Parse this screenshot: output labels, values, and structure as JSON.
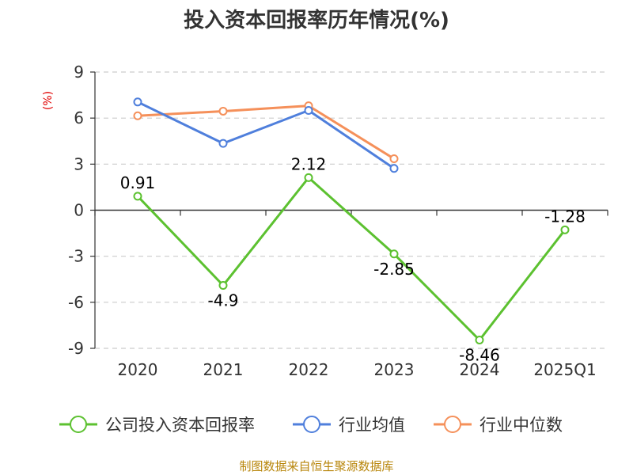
{
  "chart_data": {
    "type": "line",
    "title": "投入资本回报率历年情况(%)",
    "ylabel": "(%)",
    "categories": [
      "2020",
      "2021",
      "2022",
      "2023",
      "2024",
      "2025Q1"
    ],
    "ylim": [
      -9,
      9
    ],
    "yticks": [
      "9",
      "6",
      "3",
      "0",
      "-3",
      "-6",
      "-9"
    ],
    "grid": true,
    "legend_position": "bottom",
    "series": [
      {
        "name": "公司投入资本回报率",
        "color": "#5cc130",
        "values": [
          0.91,
          -4.9,
          2.12,
          -2.85,
          -8.46,
          -1.28
        ],
        "labels": [
          "0.91",
          "-4.9",
          "2.12",
          "-2.85",
          "-8.46",
          "-1.28"
        ]
      },
      {
        "name": "行业均值",
        "color": "#4f7fdc",
        "values": [
          7.05,
          4.35,
          6.5,
          2.72,
          null,
          null
        ]
      },
      {
        "name": "行业中位数",
        "color": "#f5905a",
        "values": [
          6.15,
          6.45,
          6.8,
          3.35,
          null,
          null
        ]
      }
    ]
  },
  "source": "制图数据来自恒生聚源数据库"
}
